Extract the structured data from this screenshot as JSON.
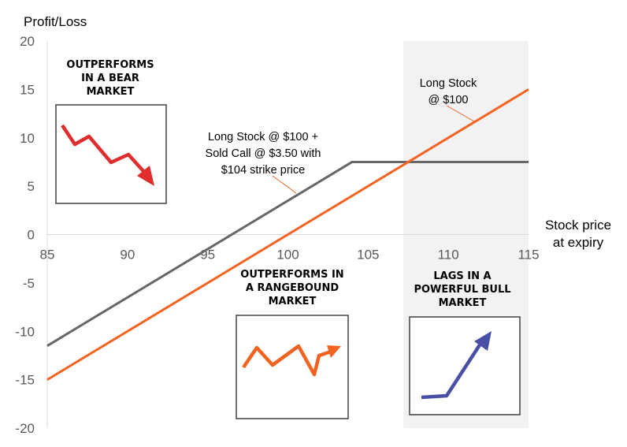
{
  "chart_data": {
    "type": "line",
    "ylabel": "Profit/Loss",
    "xlabel": "Stock price\nat expiry",
    "xlim": [
      85,
      115
    ],
    "ylim": [
      -20,
      20
    ],
    "x_ticks": [
      85,
      90,
      95,
      100,
      105,
      110,
      115
    ],
    "y_ticks": [
      20,
      15,
      10,
      5,
      0,
      -5,
      -10,
      -15,
      -20
    ],
    "grid": false,
    "shaded_region": {
      "x_from": 107.2,
      "x_to": 115,
      "color": "#f2f2f2"
    },
    "series": [
      {
        "key": "covered",
        "color": "#666666",
        "x": [
          85,
          104,
          115
        ],
        "y": [
          -11.5,
          7.5,
          7.5
        ]
      },
      {
        "key": "stock",
        "color": "#f26322",
        "x": [
          85,
          115
        ],
        "y": [
          -15,
          15
        ]
      }
    ],
    "annotations": [
      {
        "key": "covered_label",
        "lines": [
          "Long Stock @ $100 +",
          "Sold Call @ $3.50 with",
          "$104 strike price"
        ]
      },
      {
        "key": "stock_label",
        "lines": [
          "Long Stock",
          "@ $100"
        ]
      }
    ]
  },
  "insets": [
    {
      "key": "bear",
      "title_lines": [
        "OUTPERFORMS",
        "IN A BEAR",
        "MARKET"
      ],
      "arrow_color": "#e02c2c"
    },
    {
      "key": "range",
      "title_lines": [
        "OUTPERFORMS IN",
        "A RANGEBOUND",
        "MARKET"
      ],
      "arrow_color": "#f26322"
    },
    {
      "key": "bull",
      "title_lines": [
        "LAGS IN A",
        "POWERFUL BULL",
        "MARKET"
      ],
      "arrow_color": "#4a4fa6"
    }
  ]
}
